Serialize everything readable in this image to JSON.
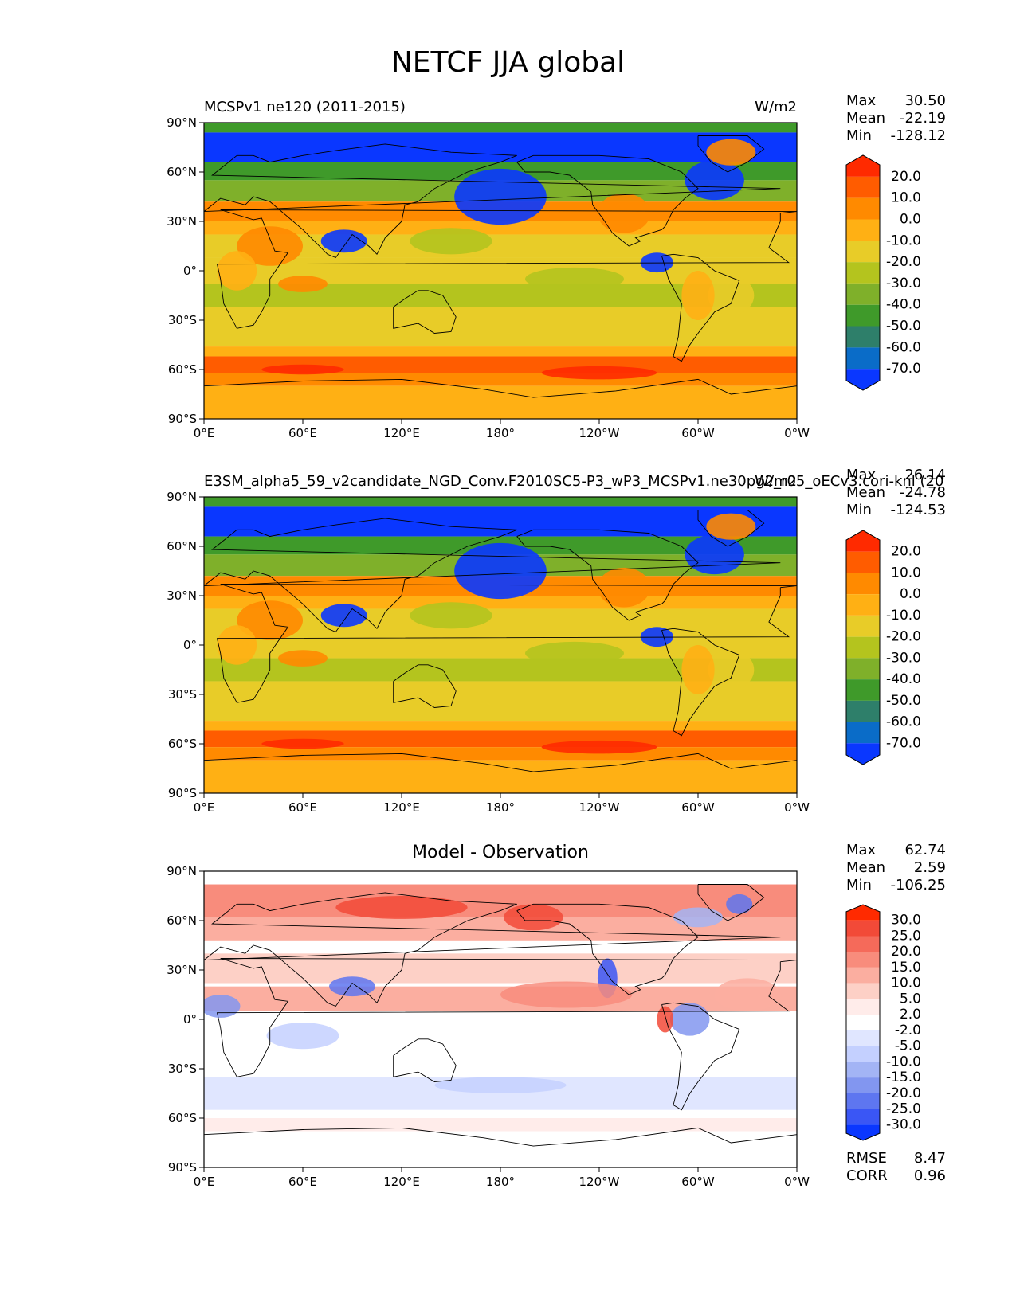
{
  "title": "NETCF JJA global",
  "x_ticks": [
    "0°E",
    "60°E",
    "120°E",
    "180°",
    "120°W",
    "60°W",
    "0°W"
  ],
  "y_ticks": [
    "90°N",
    "60°N",
    "30°N",
    "0°",
    "30°S",
    "60°S",
    "90°S"
  ],
  "panels": [
    {
      "left_title": "MCSPv1 ne120 (2011-2015)",
      "center_title": "",
      "right_title": "W/m2",
      "stats": {
        "max_label": "Max",
        "max": "30.50",
        "mean_label": "Mean",
        "mean": "-22.19",
        "min_label": "Min",
        "min": "-128.12"
      },
      "colorbar": {
        "labels": [
          "20.0",
          "10.0",
          "0.0",
          "-10.0",
          "-20.0",
          "-30.0",
          "-40.0",
          "-50.0",
          "-60.0",
          "-70.0"
        ],
        "colors": [
          "#ff2a00",
          "#ff5c00",
          "#ff8a00",
          "#ffb014",
          "#e8cc28",
          "#b4c41e",
          "#7fb02a",
          "#3f9a2a",
          "#2e7f6a",
          "#0a6cc8",
          "#0a37ff"
        ]
      }
    },
    {
      "left_title": "E3SM_alpha5_59_v2candidate_NGD_Conv.F2010SC5-P3_wP3_MCSPv1.ne30pg2_r05_oECv3.cori-knl (20",
      "center_title": "",
      "right_title": "W/m2",
      "stats": {
        "max_label": "Max",
        "max": "26.14",
        "mean_label": "Mean",
        "mean": "-24.78",
        "min_label": "Min",
        "min": "-124.53"
      },
      "colorbar": {
        "labels": [
          "20.0",
          "10.0",
          "0.0",
          "-10.0",
          "-20.0",
          "-30.0",
          "-40.0",
          "-50.0",
          "-60.0",
          "-70.0"
        ],
        "colors": [
          "#ff2a00",
          "#ff5c00",
          "#ff8a00",
          "#ffb014",
          "#e8cc28",
          "#b4c41e",
          "#7fb02a",
          "#3f9a2a",
          "#2e7f6a",
          "#0a6cc8",
          "#0a37ff"
        ]
      }
    },
    {
      "left_title": "",
      "center_title": "Model - Observation",
      "right_title": "",
      "stats": {
        "max_label": "Max",
        "max": "62.74",
        "mean_label": "Mean",
        "mean": "2.59",
        "min_label": "Min",
        "min": "-106.25"
      },
      "colorbar": {
        "labels": [
          "30.0",
          "25.0",
          "20.0",
          "15.0",
          "10.0",
          "5.0",
          "2.0",
          "-2.0",
          "-5.0",
          "-10.0",
          "-15.0",
          "-20.0",
          "-25.0",
          "-30.0"
        ],
        "colors": [
          "#ff2a00",
          "#f24a38",
          "#f56a5a",
          "#f88c7c",
          "#fbaea0",
          "#fdd0c6",
          "#ffecea",
          "#ffffff",
          "#e0e6ff",
          "#c4d0ff",
          "#a3b4f5",
          "#8296f0",
          "#5e76f0",
          "#3a56f5",
          "#0a37ff"
        ]
      },
      "bottom": {
        "rmse_label": "RMSE",
        "rmse": "8.47",
        "corr_label": "CORR",
        "corr": "0.96"
      }
    }
  ]
}
